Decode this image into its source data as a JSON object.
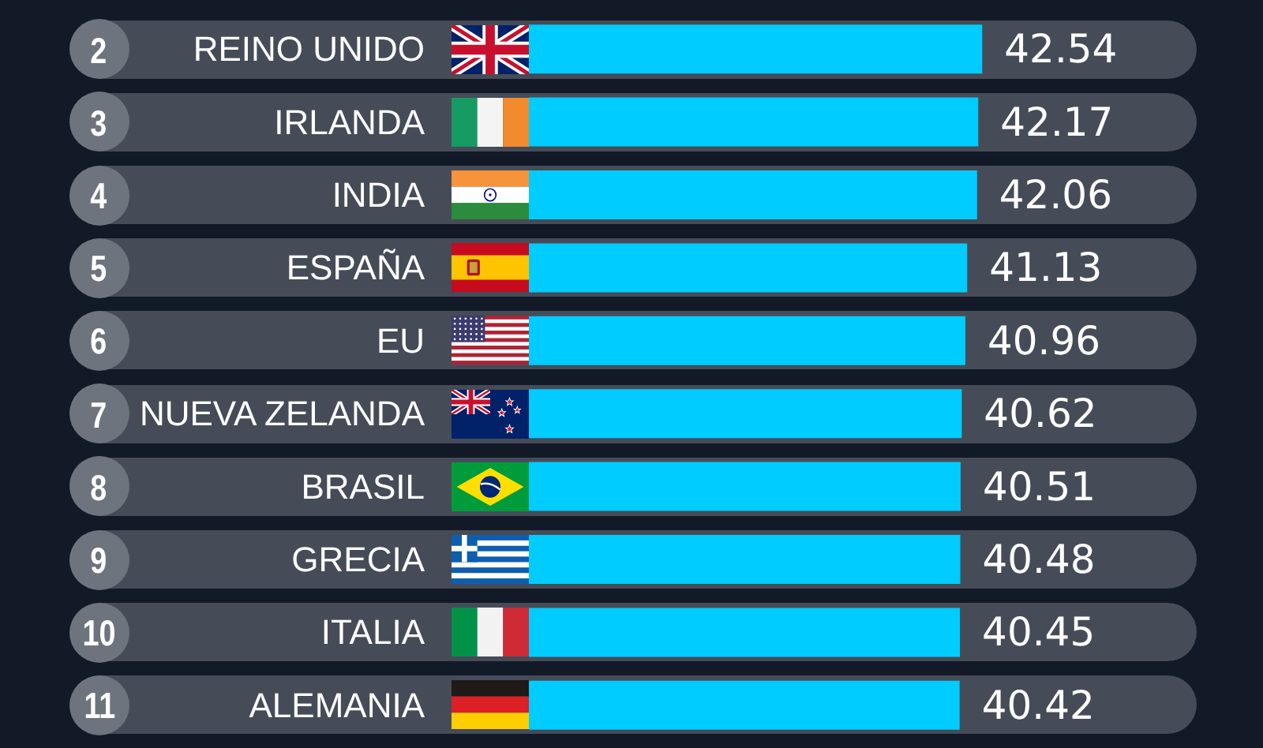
{
  "chart_data": {
    "type": "bar",
    "orientation": "horizontal",
    "categories": [
      "REINO UNIDO",
      "IRLANDA",
      "INDIA",
      "ESPAÑA",
      "EU",
      "NUEVA ZELANDA",
      "BRASIL",
      "GRECIA",
      "ITALIA",
      "ALEMANIA"
    ],
    "values": [
      42.54,
      42.17,
      42.06,
      41.13,
      40.96,
      40.62,
      40.51,
      40.48,
      40.45,
      40.42
    ],
    "color": "#00ccff",
    "data_labels": true,
    "tick_labels": "y",
    "annotations": [
      "2",
      "3",
      "4",
      "5",
      "6",
      "7",
      "8",
      "9",
      "10",
      "11"
    ]
  }
}
